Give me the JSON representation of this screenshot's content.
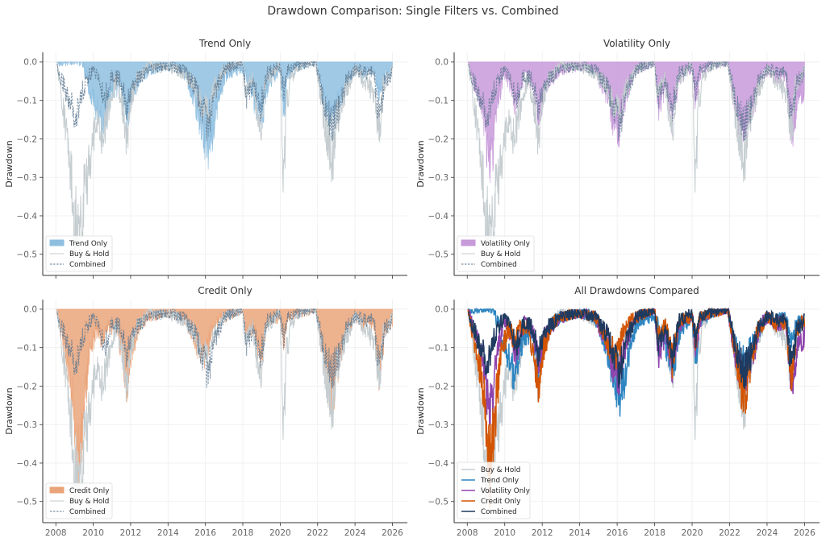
{
  "figure": {
    "title": "Drawdown Comparison: Single Filters vs. Combined"
  },
  "colors": {
    "buy_hold": "#c5cdd0",
    "trend": "#2e86c1",
    "trend_fill": "#8fbfe0",
    "volatility": "#8e44ad",
    "volatility_fill": "#c79ad9",
    "credit": "#d35400",
    "credit_fill": "#eaa47a",
    "combined": "#1f3a5f",
    "combined_dashed": "#5d7890"
  },
  "chart_data": [
    {
      "type": "area",
      "title": "Trend Only",
      "xlabel": "",
      "ylabel": "Drawdown",
      "xlim": [
        2007.3,
        2026.8
      ],
      "ylim": [
        -0.555,
        0.025
      ],
      "xticks": [
        "2008",
        "2010",
        "2012",
        "2014",
        "2016",
        "2018",
        "2020",
        "2022",
        "2024",
        "2026"
      ],
      "yticks": [
        "0.0",
        "−0.1",
        "−0.2",
        "−0.3",
        "−0.4",
        "−0.5"
      ],
      "grid": true,
      "legend": {
        "placement": "lower-left",
        "entries": [
          "Trend Only",
          "Buy & Hold",
          "Combined"
        ]
      },
      "filled_series": "trend",
      "overlay_series": [
        "buy_hold",
        "combined"
      ],
      "show_xticks": false
    },
    {
      "type": "area",
      "title": "Volatility Only",
      "xlabel": "",
      "ylabel": "Drawdown",
      "xlim": [
        2007.3,
        2026.8
      ],
      "ylim": [
        -0.555,
        0.025
      ],
      "xticks": [
        "2008",
        "2010",
        "2012",
        "2014",
        "2016",
        "2018",
        "2020",
        "2022",
        "2024",
        "2026"
      ],
      "yticks": [
        "0.0",
        "−0.1",
        "−0.2",
        "−0.3",
        "−0.4",
        "−0.5"
      ],
      "grid": true,
      "legend": {
        "placement": "lower-left",
        "entries": [
          "Volatility Only",
          "Buy & Hold",
          "Combined"
        ]
      },
      "filled_series": "volatility",
      "overlay_series": [
        "buy_hold",
        "combined"
      ],
      "show_xticks": false
    },
    {
      "type": "area",
      "title": "Credit Only",
      "xlabel": "",
      "ylabel": "Drawdown",
      "xlim": [
        2007.3,
        2026.8
      ],
      "ylim": [
        -0.555,
        0.025
      ],
      "xticks": [
        "2008",
        "2010",
        "2012",
        "2014",
        "2016",
        "2018",
        "2020",
        "2022",
        "2024",
        "2026"
      ],
      "yticks": [
        "0.0",
        "−0.1",
        "−0.2",
        "−0.3",
        "−0.4",
        "−0.5"
      ],
      "grid": true,
      "legend": {
        "placement": "lower-left",
        "entries": [
          "Credit Only",
          "Buy & Hold",
          "Combined"
        ]
      },
      "filled_series": "credit",
      "overlay_series": [
        "buy_hold",
        "combined"
      ],
      "show_xticks": true
    },
    {
      "type": "line",
      "title": "All Drawdowns Compared",
      "xlabel": "",
      "ylabel": "Drawdown",
      "xlim": [
        2007.3,
        2026.8
      ],
      "ylim": [
        -0.555,
        0.025
      ],
      "xticks": [
        "2008",
        "2010",
        "2012",
        "2014",
        "2016",
        "2018",
        "2020",
        "2022",
        "2024",
        "2026"
      ],
      "yticks": [
        "0.0",
        "−0.1",
        "−0.2",
        "−0.3",
        "−0.4",
        "−0.5"
      ],
      "grid": true,
      "legend": {
        "placement": "lower-left",
        "entries": [
          "Buy & Hold",
          "Trend Only",
          "Volatility Only",
          "Credit Only",
          "Combined"
        ]
      },
      "line_series": [
        "buy_hold",
        "trend",
        "volatility",
        "credit",
        "combined"
      ],
      "show_xticks": true
    }
  ],
  "series": {
    "buy_hold": {
      "name": "Buy & Hold",
      "x": [
        2008.05,
        2008.2,
        2008.4,
        2008.6,
        2008.8,
        2009.0,
        2009.2,
        2009.4,
        2009.7,
        2010.0,
        2010.3,
        2010.5,
        2010.8,
        2011.2,
        2011.6,
        2011.8,
        2012.0,
        2012.3,
        2012.6,
        2013.0,
        2014.0,
        2014.8,
        2015.4,
        2015.7,
        2016.1,
        2016.5,
        2017.0,
        2018.0,
        2018.1,
        2018.5,
        2018.95,
        2019.2,
        2019.6,
        2020.0,
        2020.2,
        2020.3,
        2020.6,
        2021.0,
        2021.9,
        2022.2,
        2022.5,
        2022.8,
        2023.0,
        2023.5,
        2024.0,
        2024.5,
        2025.0,
        2025.3,
        2025.5,
        2026.0
      ],
      "y": [
        0.0,
        -0.05,
        -0.12,
        -0.2,
        -0.3,
        -0.42,
        -0.47,
        -0.38,
        -0.3,
        -0.22,
        -0.15,
        -0.2,
        -0.12,
        -0.05,
        -0.12,
        -0.2,
        -0.1,
        -0.05,
        -0.03,
        -0.01,
        -0.01,
        -0.03,
        -0.06,
        -0.1,
        -0.13,
        -0.07,
        -0.02,
        0.0,
        -0.08,
        -0.04,
        -0.19,
        -0.05,
        -0.03,
        -0.01,
        -0.34,
        -0.12,
        -0.04,
        -0.01,
        0.0,
        -0.1,
        -0.2,
        -0.25,
        -0.16,
        -0.08,
        -0.02,
        -0.05,
        -0.08,
        -0.19,
        -0.06,
        -0.02
      ]
    },
    "trend": {
      "name": "Trend Only",
      "x": [
        2008.05,
        2008.2,
        2009.4,
        2009.7,
        2010.2,
        2010.5,
        2010.8,
        2011.0,
        2011.5,
        2011.8,
        2012.1,
        2012.5,
        2013.0,
        2014.0,
        2014.8,
        2015.3,
        2015.6,
        2016.0,
        2016.2,
        2016.6,
        2017.0,
        2017.6,
        2018.1,
        2018.5,
        2019.0,
        2019.4,
        2020.0,
        2020.2,
        2020.4,
        2021.0,
        2021.9,
        2022.1,
        2022.5,
        2022.8,
        2023.2,
        2023.6,
        2024.0,
        2024.4,
        2025.0,
        2025.3,
        2025.6,
        2026.0
      ],
      "y": [
        0.0,
        0.0,
        0.0,
        -0.05,
        -0.12,
        -0.18,
        -0.1,
        -0.08,
        -0.05,
        -0.16,
        -0.08,
        -0.04,
        -0.02,
        -0.01,
        -0.02,
        -0.08,
        -0.14,
        -0.2,
        -0.22,
        -0.12,
        -0.04,
        -0.02,
        -0.03,
        -0.08,
        -0.15,
        -0.05,
        -0.02,
        -0.13,
        -0.03,
        -0.01,
        0.0,
        -0.06,
        -0.12,
        -0.14,
        -0.1,
        -0.05,
        -0.02,
        -0.03,
        -0.02,
        -0.08,
        -0.04,
        -0.02
      ]
    },
    "volatility": {
      "name": "Volatility Only",
      "x": [
        2008.05,
        2008.3,
        2008.6,
        2008.9,
        2009.1,
        2009.3,
        2009.6,
        2010.0,
        2010.3,
        2010.6,
        2011.0,
        2011.5,
        2011.8,
        2012.2,
        2013.0,
        2014.0,
        2014.8,
        2015.4,
        2015.8,
        2016.1,
        2016.5,
        2017.0,
        2018.0,
        2018.2,
        2018.6,
        2018.95,
        2019.3,
        2020.0,
        2020.2,
        2020.4,
        2021.0,
        2021.9,
        2022.2,
        2022.5,
        2022.8,
        2023.2,
        2023.6,
        2024.0,
        2024.6,
        2025.0,
        2025.3,
        2025.6,
        2026.0
      ],
      "y": [
        0.0,
        -0.05,
        -0.08,
        -0.15,
        -0.25,
        -0.26,
        -0.1,
        -0.03,
        -0.06,
        -0.12,
        -0.04,
        -0.06,
        -0.14,
        -0.06,
        -0.02,
        -0.01,
        -0.02,
        -0.08,
        -0.15,
        -0.17,
        -0.08,
        -0.02,
        0.0,
        -0.12,
        -0.06,
        -0.15,
        -0.04,
        -0.02,
        -0.11,
        -0.03,
        -0.01,
        0.0,
        -0.09,
        -0.16,
        -0.18,
        -0.13,
        -0.05,
        -0.02,
        -0.04,
        -0.03,
        -0.21,
        -0.1,
        -0.07
      ]
    },
    "credit": {
      "name": "Credit Only",
      "x": [
        2008.05,
        2008.2,
        2008.5,
        2008.8,
        2009.0,
        2009.2,
        2009.4,
        2009.8,
        2010.2,
        2010.5,
        2010.8,
        2011.2,
        2011.6,
        2011.8,
        2012.1,
        2012.5,
        2013.0,
        2014.0,
        2014.8,
        2015.3,
        2015.6,
        2016.0,
        2016.3,
        2016.7,
        2017.0,
        2018.0,
        2018.2,
        2018.6,
        2018.95,
        2019.3,
        2020.0,
        2020.2,
        2020.4,
        2021.0,
        2021.9,
        2022.2,
        2022.6,
        2022.8,
        2023.1,
        2023.5,
        2024.0,
        2024.6,
        2025.0,
        2025.3,
        2025.6,
        2026.0
      ],
      "y": [
        0.0,
        -0.05,
        -0.1,
        -0.18,
        -0.28,
        -0.42,
        -0.32,
        -0.12,
        -0.05,
        -0.08,
        -0.04,
        -0.05,
        -0.13,
        -0.2,
        -0.1,
        -0.04,
        -0.02,
        -0.01,
        -0.02,
        -0.06,
        -0.1,
        -0.12,
        -0.06,
        -0.03,
        -0.02,
        0.0,
        -0.07,
        -0.04,
        -0.14,
        -0.03,
        -0.02,
        -0.09,
        -0.02,
        -0.01,
        0.0,
        -0.08,
        -0.19,
        -0.25,
        -0.14,
        -0.06,
        -0.02,
        -0.05,
        -0.03,
        -0.19,
        -0.05,
        -0.03
      ]
    },
    "combined": {
      "name": "Combined",
      "x": [
        2008.05,
        2008.3,
        2008.6,
        2008.9,
        2009.1,
        2009.3,
        2009.6,
        2010.0,
        2010.3,
        2010.6,
        2011.0,
        2011.5,
        2011.8,
        2012.2,
        2013.0,
        2014.0,
        2014.8,
        2015.4,
        2015.8,
        2016.1,
        2016.5,
        2017.0,
        2018.0,
        2018.2,
        2018.6,
        2018.95,
        2019.3,
        2020.0,
        2020.2,
        2020.4,
        2021.0,
        2021.9,
        2022.2,
        2022.5,
        2022.8,
        2023.2,
        2023.6,
        2024.0,
        2024.6,
        2025.0,
        2025.3,
        2025.6,
        2026.0
      ],
      "y": [
        0.0,
        -0.05,
        -0.08,
        -0.12,
        -0.15,
        -0.1,
        -0.05,
        -0.02,
        -0.04,
        -0.1,
        -0.03,
        -0.05,
        -0.12,
        -0.05,
        -0.02,
        -0.01,
        -0.02,
        -0.06,
        -0.12,
        -0.17,
        -0.08,
        -0.02,
        0.0,
        -0.1,
        -0.05,
        -0.12,
        -0.03,
        -0.01,
        -0.08,
        -0.02,
        -0.01,
        0.0,
        -0.07,
        -0.13,
        -0.16,
        -0.11,
        -0.04,
        -0.02,
        -0.03,
        -0.02,
        -0.16,
        -0.05,
        -0.03
      ]
    }
  }
}
